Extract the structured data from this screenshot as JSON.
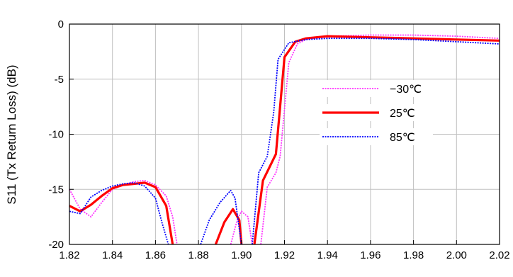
{
  "chart_data": {
    "type": "line",
    "title": "",
    "xlabel": "",
    "ylabel": "S11 (Tx Return Loss) (dB)",
    "xlim": [
      1.82,
      2.02
    ],
    "ylim": [
      -20,
      0
    ],
    "x_ticks": [
      1.82,
      1.84,
      1.86,
      1.88,
      1.9,
      1.92,
      1.94,
      1.96,
      1.98,
      2.0,
      2.02
    ],
    "x_tick_labels": [
      "1.82",
      "1.84",
      "1.86",
      "1.88",
      "1.90",
      "1.92",
      "1.94",
      "1.96",
      "1.98",
      "2.00",
      "2.02"
    ],
    "y_ticks": [
      0,
      -5,
      -10,
      -15,
      -20
    ],
    "y_tick_labels": [
      "0",
      "-5",
      "-10",
      "-15",
      "-20"
    ],
    "grid": true,
    "legend_position": "right",
    "series": [
      {
        "name": "−30℃",
        "color": "#ff33ff",
        "dash": "dotted",
        "segments": [
          [
            [
              1.82,
              -15.0
            ],
            [
              1.825,
              -16.8
            ],
            [
              1.83,
              -17.5
            ],
            [
              1.835,
              -16.2
            ],
            [
              1.84,
              -15.0
            ],
            [
              1.845,
              -14.6
            ],
            [
              1.85,
              -14.3
            ],
            [
              1.855,
              -14.2
            ],
            [
              1.86,
              -14.6
            ],
            [
              1.865,
              -15.6
            ],
            [
              1.868,
              -17.5
            ],
            [
              1.87,
              -20.0
            ]
          ],
          [
            [
              1.895,
              -20.0
            ],
            [
              1.898,
              -17.8
            ],
            [
              1.9,
              -17.0
            ],
            [
              1.903,
              -17.5
            ],
            [
              1.905,
              -20.0
            ]
          ],
          [
            [
              1.909,
              -20.0
            ],
            [
              1.912,
              -14.8
            ],
            [
              1.916,
              -13.5
            ],
            [
              1.918,
              -12.0
            ],
            [
              1.922,
              -3.5
            ],
            [
              1.926,
              -1.8
            ],
            [
              1.93,
              -1.4
            ],
            [
              1.94,
              -1.1
            ],
            [
              1.96,
              -1.0
            ],
            [
              1.98,
              -1.0
            ],
            [
              2.0,
              -1.1
            ],
            [
              2.02,
              -1.3
            ]
          ]
        ]
      },
      {
        "name": "25℃",
        "color": "#ff0000",
        "dash": "solid",
        "segments": [
          [
            [
              1.82,
              -16.5
            ],
            [
              1.825,
              -17.0
            ],
            [
              1.83,
              -16.4
            ],
            [
              1.835,
              -15.6
            ],
            [
              1.84,
              -14.9
            ],
            [
              1.845,
              -14.6
            ],
            [
              1.85,
              -14.5
            ],
            [
              1.855,
              -14.4
            ],
            [
              1.86,
              -14.8
            ],
            [
              1.865,
              -16.5
            ],
            [
              1.868,
              -20.0
            ]
          ],
          [
            [
              1.888,
              -20.0
            ],
            [
              1.892,
              -18.0
            ],
            [
              1.896,
              -16.8
            ],
            [
              1.899,
              -17.8
            ],
            [
              1.9,
              -20.0
            ]
          ],
          [
            [
              1.906,
              -20.0
            ],
            [
              1.91,
              -14.2
            ],
            [
              1.914,
              -12.6
            ],
            [
              1.916,
              -11.8
            ],
            [
              1.92,
              -3.0
            ],
            [
              1.925,
              -1.6
            ],
            [
              1.93,
              -1.3
            ],
            [
              1.94,
              -1.1
            ],
            [
              1.96,
              -1.2
            ],
            [
              1.98,
              -1.3
            ],
            [
              2.0,
              -1.4
            ],
            [
              2.02,
              -1.5
            ]
          ]
        ]
      },
      {
        "name": "85℃",
        "color": "#0000ff",
        "dash": "dotted",
        "segments": [
          [
            [
              1.82,
              -17.0
            ],
            [
              1.825,
              -17.2
            ],
            [
              1.83,
              -15.7
            ],
            [
              1.835,
              -15.1
            ],
            [
              1.84,
              -14.7
            ],
            [
              1.845,
              -14.5
            ],
            [
              1.85,
              -14.4
            ],
            [
              1.855,
              -14.7
            ],
            [
              1.86,
              -15.8
            ],
            [
              1.863,
              -18.0
            ],
            [
              1.866,
              -20.0
            ]
          ],
          [
            [
              1.881,
              -20.0
            ],
            [
              1.885,
              -17.8
            ],
            [
              1.89,
              -16.2
            ],
            [
              1.895,
              -15.1
            ],
            [
              1.897,
              -15.8
            ],
            [
              1.9,
              -20.0
            ]
          ],
          [
            [
              1.905,
              -20.0
            ],
            [
              1.908,
              -13.5
            ],
            [
              1.912,
              -12.0
            ],
            [
              1.915,
              -8.0
            ],
            [
              1.917,
              -3.2
            ],
            [
              1.922,
              -1.7
            ],
            [
              1.93,
              -1.4
            ],
            [
              1.94,
              -1.3
            ],
            [
              1.96,
              -1.3
            ],
            [
              1.98,
              -1.4
            ],
            [
              2.0,
              -1.6
            ],
            [
              2.02,
              -1.8
            ]
          ]
        ]
      }
    ]
  }
}
